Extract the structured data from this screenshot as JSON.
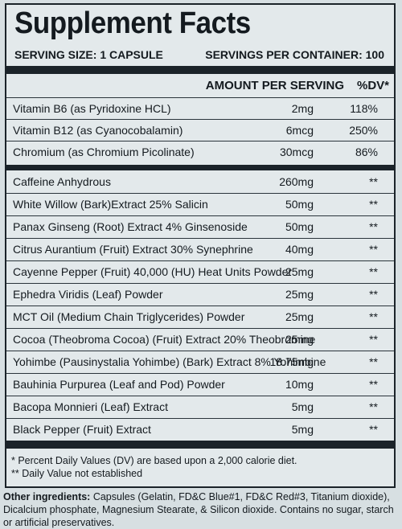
{
  "title": "Supplement Facts",
  "serving_size": "SERVING SIZE: 1 CAPSULE",
  "servings_per_container": "SERVINGS PER CONTAINER: 100",
  "header": {
    "amount": "AMOUNT PER SERVING",
    "dv": "%DV*"
  },
  "vitamins": [
    {
      "name": "Vitamin B6 (as Pyridoxine HCL)",
      "amount": "2mg",
      "dv": "118%"
    },
    {
      "name": "Vitamin B12 (as Cyanocobalamin)",
      "amount": "6mcg",
      "dv": "250%"
    },
    {
      "name": "Chromium (as Chromium Picolinate)",
      "amount": "30mcg",
      "dv": "86%"
    }
  ],
  "ingredients": [
    {
      "name": "Caffeine Anhydrous",
      "amount": "260mg",
      "dv": "**"
    },
    {
      "name": "White Willow (Bark)Extract 25% Salicin",
      "amount": "50mg",
      "dv": "**"
    },
    {
      "name": "Panax Ginseng (Root) Extract 4% Ginsenoside",
      "amount": "50mg",
      "dv": "**"
    },
    {
      "name": "Citrus Aurantium (Fruit) Extract 30% Synephrine",
      "amount": "40mg",
      "dv": "**"
    },
    {
      "name": "Cayenne Pepper (Fruit) 40,000 (HU) Heat Units Powder",
      "amount": "25mg",
      "dv": "**"
    },
    {
      "name": "Ephedra Viridis (Leaf) Powder",
      "amount": "25mg",
      "dv": "**"
    },
    {
      "name": "MCT Oil (Medium Chain Triglycerides) Powder",
      "amount": "25mg",
      "dv": "**"
    },
    {
      "name": "Cocoa (Theobroma Cocoa) (Fruit) Extract 20% Theobromine",
      "amount": "25mg",
      "dv": "**"
    },
    {
      "name": "Yohimbe (Pausinystalia Yohimbe) (Bark) Extract 8% Yohimbine",
      "amount": "18.75mg",
      "dv": "**"
    },
    {
      "name": "Bauhinia Purpurea (Leaf and Pod) Powder",
      "amount": "10mg",
      "dv": "**"
    },
    {
      "name": "Bacopa Monnieri (Leaf) Extract",
      "amount": "5mg",
      "dv": "**"
    },
    {
      "name": "Black Pepper (Fruit) Extract",
      "amount": "5mg",
      "dv": "**"
    }
  ],
  "footnotes": [
    "* Percent Daily Values (DV) are based upon a 2,000 calorie diet.",
    "** Daily Value not established"
  ],
  "other_ingredients": {
    "label": "Other ingredients:",
    "text": "Capsules (Gelatin, FD&C Blue#1, FD&C Red#3, Titanium dioxide), Dicalcium phosphate, Magnesium Stearate, & Silicon dioxide. Contains no sugar, starch or artificial preservatives."
  }
}
